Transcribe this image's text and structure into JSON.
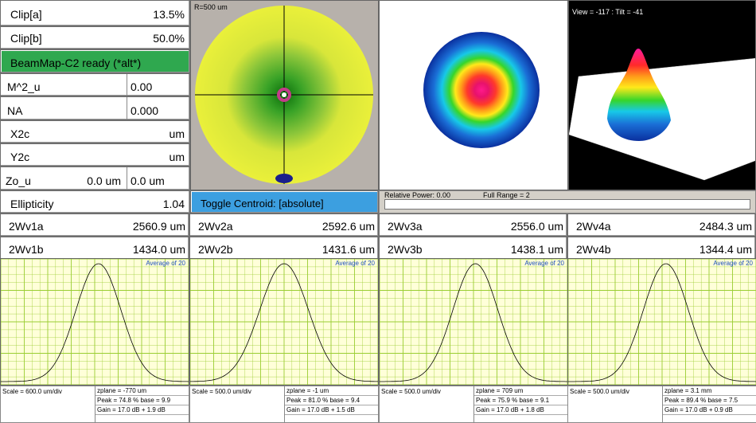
{
  "left_panel": {
    "clip_a": {
      "label": "Clip[a]",
      "value": "13.5%"
    },
    "clip_b": {
      "label": "Clip[b]",
      "value": "50.0%"
    },
    "status": "BeamMap-C2 ready (*alt*)",
    "m2u": {
      "label": "M^2_u",
      "value": "0.00"
    },
    "na": {
      "label": "NA",
      "value": "0.000"
    },
    "x2c": {
      "label": "X2c",
      "value": "um"
    },
    "y2c": {
      "label": "Y2c",
      "value": "um"
    },
    "zou": {
      "label": "Zo_u",
      "value1": "0.0 um",
      "value2": "0.0 um"
    },
    "ellipticity": {
      "label": "Ellipticity",
      "value": "1.04"
    }
  },
  "beam_map": {
    "radius_label": "R=500 um"
  },
  "view3d": {
    "label": "View = -117 : Tilt = -41"
  },
  "toggle_centroid": "Toggle Centroid:   [absolute]",
  "power_bar": {
    "relative": "Relative Power: 0.00",
    "full_range": "Full Range = 2",
    "fill": 0
  },
  "widths": [
    {
      "a_label": "2Wv1a",
      "a_value": "2560.9 um",
      "b_label": "2Wv1b",
      "b_value": "1434.0 um"
    },
    {
      "a_label": "2Wv2a",
      "a_value": "2592.6 um",
      "b_label": "2Wv2b",
      "b_value": "1431.6 um"
    },
    {
      "a_label": "2Wv3a",
      "a_value": "2556.0 um",
      "b_label": "2Wv3b",
      "b_value": "1438.1 um"
    },
    {
      "a_label": "2Wv4a",
      "a_value": "2484.3 um",
      "b_label": "2Wv4b",
      "b_value": "1344.4 um"
    }
  ],
  "profiles": [
    {
      "avg": "Average of 20",
      "scale": "Scale = 600.0 um/div",
      "zplane": "zplane = -770 um",
      "peak": "Peak = 74.8 %  base = 9.9",
      "gain": "Gain = 17.0 dB + 1.9 dB",
      "center": 0.52,
      "sigma": 0.12
    },
    {
      "avg": "Average of 20",
      "scale": "Scale = 500.0 um/div",
      "zplane": "zplane = -1 um",
      "peak": "Peak = 81.0 %  base = 9.4",
      "gain": "Gain = 17.0 dB + 1.5 dB",
      "center": 0.5,
      "sigma": 0.13
    },
    {
      "avg": "Average of 20",
      "scale": "Scale = 500.0 um/div",
      "zplane": "zplane = 709 um",
      "peak": "Peak = 75.9 %  base = 9.1",
      "gain": "Gain = 17.0 dB + 1.8 dB",
      "center": 0.51,
      "sigma": 0.12
    },
    {
      "avg": "Average of 20",
      "scale": "Scale = 500.0 um/div",
      "zplane": "zplane = 3.1 mm",
      "peak": "Peak = 89.4 %  base = 7.5",
      "gain": "Gain = 17.0 dB + 0.9 dB",
      "center": 0.52,
      "sigma": 0.12
    }
  ],
  "colors": {
    "status_green": "#2fa84f",
    "toggle_blue": "#3c9fe0",
    "plot_bg": "#ffffd9",
    "grid": "#9acd32",
    "beam_yellow": "#e8ef3a"
  }
}
